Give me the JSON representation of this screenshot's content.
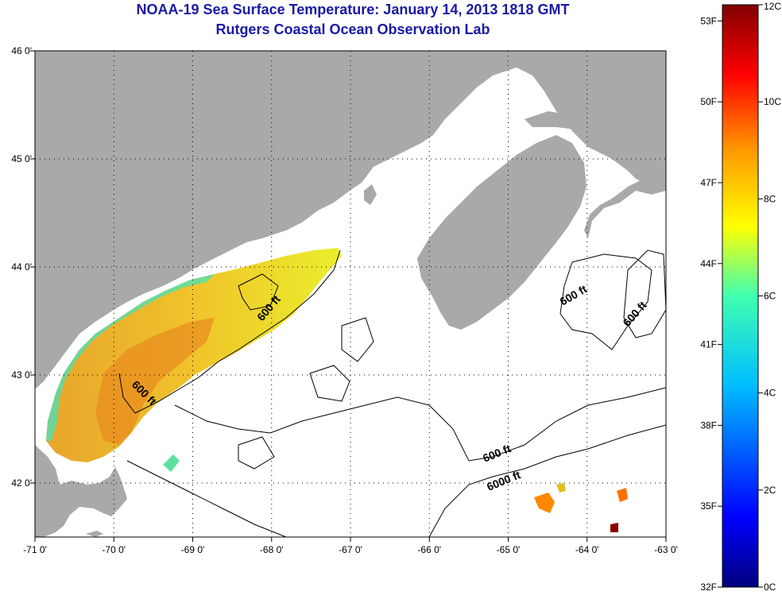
{
  "title": "NOAA-19 Sea Surface Temperature:  January 14, 2013 1818 GMT",
  "subtitle": "Rutgers Coastal Ocean Observation Lab",
  "axes": {
    "lon_ticks": [
      "-71 0'",
      "-70 0'",
      "-69 0'",
      "-68 0'",
      "-67 0'",
      "-66 0'",
      "-65 0'",
      "-64 0'",
      "-63 0'"
    ],
    "lat_ticks": [
      "46 0'",
      "45 0'",
      "44 0'",
      "43 0'",
      "42 0'"
    ],
    "lon_range": [
      -71,
      -63
    ],
    "lat_range": [
      41.5,
      46.0
    ],
    "grid": "dotted"
  },
  "contour_labels": [
    "600 ft",
    "600 ft",
    "600 ft",
    "600 ft",
    "600 ft",
    "6000 ft"
  ],
  "colorbar": {
    "fahrenheit_labels": [
      "53F",
      "50F",
      "47F",
      "44F",
      "41F",
      "38F",
      "35F",
      "32F"
    ],
    "celsius_labels": [
      "12C",
      "10C",
      "8C",
      "6C",
      "4C",
      "2C",
      "0C"
    ],
    "range_c": [
      0,
      12
    ]
  },
  "colors": {
    "land": "#a9a9a9",
    "water_no_data": "#ffffff",
    "title": "#1a1aa6"
  }
}
